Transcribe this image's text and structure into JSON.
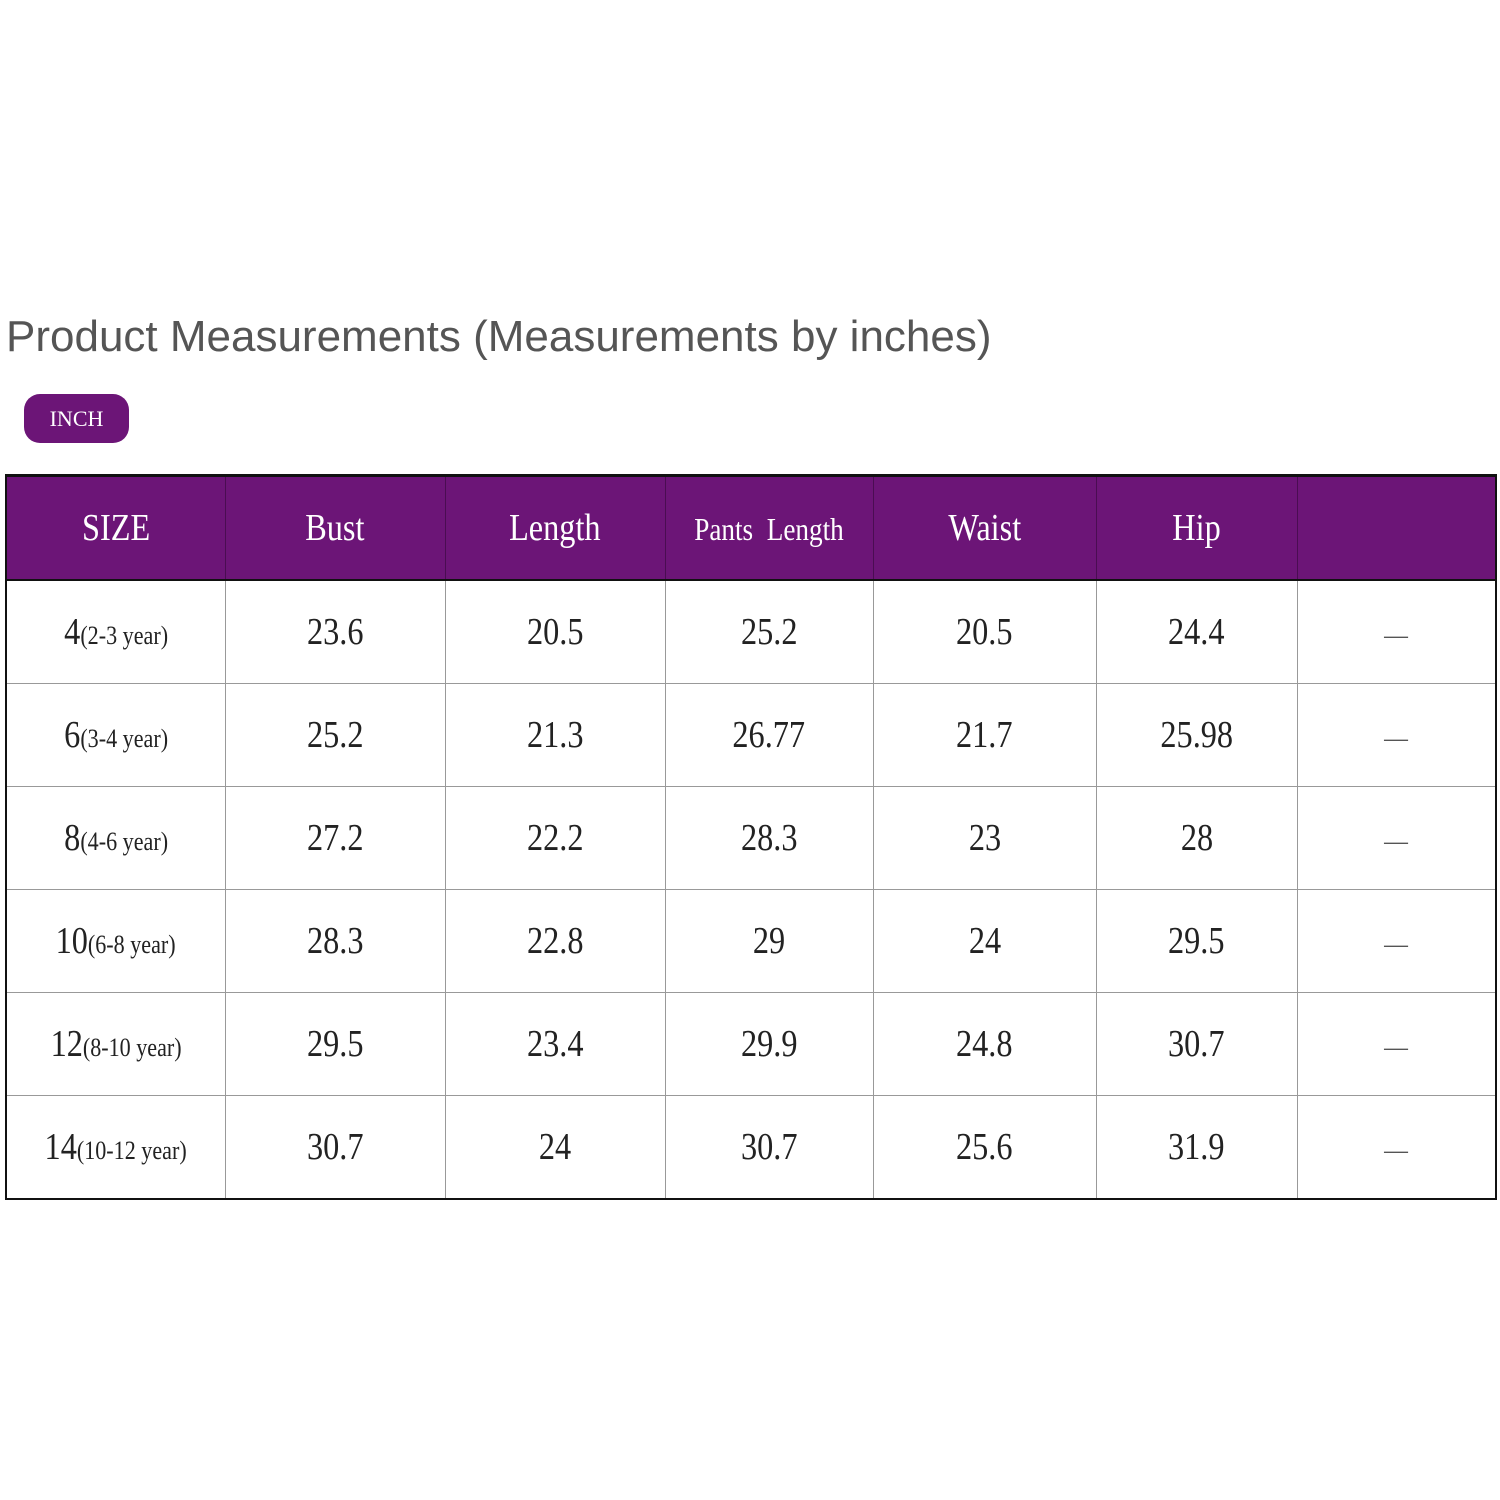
{
  "title": "Product Measurements (Measurements by inches)",
  "unit_badge": "INCH",
  "colors": {
    "header": "#6c1577"
  },
  "columns": [
    "SIZE",
    "Bust",
    "Length",
    "Pants  Length",
    "Waist",
    "Hip",
    ""
  ],
  "rows": [
    {
      "size": "4",
      "age": "(2-3 year)",
      "values": [
        "23.6",
        "20.5",
        "25.2",
        "20.5",
        "24.4",
        "—"
      ]
    },
    {
      "size": "6",
      "age": "(3-4 year)",
      "values": [
        "25.2",
        "21.3",
        "26.77",
        "21.7",
        "25.98",
        "—"
      ]
    },
    {
      "size": "8",
      "age": "(4-6 year)",
      "values": [
        "27.2",
        "22.2",
        "28.3",
        "23",
        "28",
        "—"
      ]
    },
    {
      "size": "10",
      "age": "(6-8 year)",
      "values": [
        "28.3",
        "22.8",
        "29",
        "24",
        "29.5",
        "—"
      ]
    },
    {
      "size": "12",
      "age": "(8-10 year)",
      "values": [
        "29.5",
        "23.4",
        "29.9",
        "24.8",
        "30.7",
        "—"
      ]
    },
    {
      "size": "14",
      "age": "(10-12 year)",
      "values": [
        "30.7",
        "24",
        "30.7",
        "25.6",
        "31.9",
        "—"
      ]
    }
  ]
}
